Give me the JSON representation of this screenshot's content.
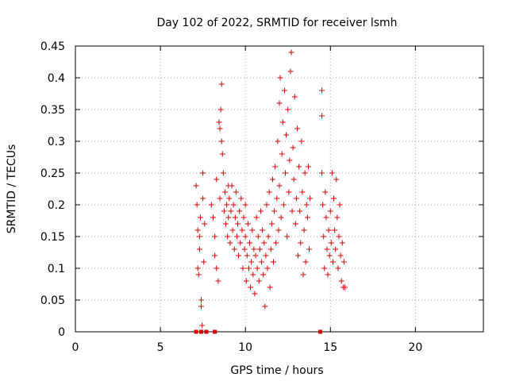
{
  "chart_data": {
    "type": "scatter",
    "title": "Day 102 of 2022, SRMTID for receiver lsmh",
    "xlabel": "GPS time / hours",
    "ylabel": "SRMTID / TECUs",
    "xlim": [
      0,
      24
    ],
    "ylim": [
      0,
      0.45
    ],
    "xticks": [
      0,
      5,
      10,
      15,
      20
    ],
    "yticks": [
      0,
      0.05,
      0.1,
      0.15,
      0.2,
      0.25,
      0.3,
      0.35,
      0.4,
      0.45
    ],
    "xtick_labels": [
      "0",
      "5",
      "10",
      "15",
      "20"
    ],
    "ytick_labels": [
      "0",
      "0.05",
      "0.1",
      "0.15",
      "0.2",
      "0.25",
      "0.3",
      "0.35",
      "0.4",
      "0.45"
    ],
    "grid": true,
    "marker": "plus",
    "color": "#dd0000",
    "series": [
      {
        "name": "SRMTID",
        "points": [
          [
            7.1,
            0.23
          ],
          [
            7.15,
            0.2
          ],
          [
            7.2,
            0.16
          ],
          [
            7.2,
            0.1
          ],
          [
            7.25,
            0.09
          ],
          [
            7.3,
            0.15
          ],
          [
            7.3,
            0.13
          ],
          [
            7.35,
            0.18
          ],
          [
            7.4,
            0.05
          ],
          [
            7.4,
            0.04
          ],
          [
            7.45,
            0.01
          ],
          [
            7.5,
            0.21
          ],
          [
            7.5,
            0.25
          ],
          [
            7.55,
            0.11
          ],
          [
            7.6,
            0.17
          ],
          [
            7.1,
            0.0
          ],
          [
            7.4,
            0.0
          ],
          [
            7.7,
            0.0
          ],
          [
            8.2,
            0.0
          ],
          [
            8.0,
            0.2
          ],
          [
            8.1,
            0.18
          ],
          [
            8.2,
            0.15
          ],
          [
            8.2,
            0.12
          ],
          [
            8.3,
            0.24
          ],
          [
            8.3,
            0.1
          ],
          [
            8.4,
            0.08
          ],
          [
            8.45,
            0.33
          ],
          [
            8.5,
            0.32
          ],
          [
            8.5,
            0.21
          ],
          [
            8.55,
            0.35
          ],
          [
            8.6,
            0.39
          ],
          [
            8.6,
            0.3
          ],
          [
            8.65,
            0.28
          ],
          [
            8.7,
            0.25
          ],
          [
            8.75,
            0.19
          ],
          [
            8.8,
            0.22
          ],
          [
            8.85,
            0.17
          ],
          [
            8.9,
            0.2
          ],
          [
            8.95,
            0.15
          ],
          [
            9.0,
            0.23
          ],
          [
            9.0,
            0.18
          ],
          [
            9.05,
            0.21
          ],
          [
            9.1,
            0.14
          ],
          [
            9.15,
            0.19
          ],
          [
            9.2,
            0.23
          ],
          [
            9.25,
            0.16
          ],
          [
            9.3,
            0.2
          ],
          [
            9.35,
            0.13
          ],
          [
            9.4,
            0.18
          ],
          [
            9.45,
            0.22
          ],
          [
            9.5,
            0.15
          ],
          [
            9.55,
            0.17
          ],
          [
            9.6,
            0.12
          ],
          [
            9.65,
            0.19
          ],
          [
            9.7,
            0.14
          ],
          [
            9.75,
            0.21
          ],
          [
            9.8,
            0.16
          ],
          [
            9.85,
            0.1
          ],
          [
            9.9,
            0.18
          ],
          [
            9.95,
            0.13
          ],
          [
            10.0,
            0.2
          ],
          [
            10.0,
            0.15
          ],
          [
            10.05,
            0.08
          ],
          [
            10.1,
            0.12
          ],
          [
            10.15,
            0.17
          ],
          [
            10.2,
            0.1
          ],
          [
            10.25,
            0.14
          ],
          [
            10.3,
            0.07
          ],
          [
            10.35,
            0.11
          ],
          [
            10.4,
            0.16
          ],
          [
            10.45,
            0.09
          ],
          [
            10.5,
            0.13
          ],
          [
            10.55,
            0.06
          ],
          [
            10.6,
            0.12
          ],
          [
            10.65,
            0.18
          ],
          [
            10.7,
            0.1
          ],
          [
            10.75,
            0.15
          ],
          [
            10.8,
            0.08
          ],
          [
            10.85,
            0.13
          ],
          [
            10.9,
            0.19
          ],
          [
            10.95,
            0.11
          ],
          [
            11.0,
            0.16
          ],
          [
            11.05,
            0.09
          ],
          [
            11.1,
            0.14
          ],
          [
            11.15,
            0.04
          ],
          [
            11.2,
            0.12
          ],
          [
            11.25,
            0.2
          ],
          [
            11.3,
            0.1
          ],
          [
            11.35,
            0.15
          ],
          [
            11.4,
            0.22
          ],
          [
            11.45,
            0.07
          ],
          [
            11.5,
            0.13
          ],
          [
            11.55,
            0.17
          ],
          [
            11.6,
            0.24
          ],
          [
            11.65,
            0.11
          ],
          [
            11.7,
            0.19
          ],
          [
            11.75,
            0.26
          ],
          [
            11.8,
            0.14
          ],
          [
            11.85,
            0.21
          ],
          [
            11.9,
            0.3
          ],
          [
            11.95,
            0.16
          ],
          [
            12.0,
            0.36
          ],
          [
            12.0,
            0.23
          ],
          [
            12.05,
            0.4
          ],
          [
            12.1,
            0.18
          ],
          [
            12.15,
            0.28
          ],
          [
            12.2,
            0.33
          ],
          [
            12.25,
            0.2
          ],
          [
            12.3,
            0.38
          ],
          [
            12.35,
            0.25
          ],
          [
            12.4,
            0.31
          ],
          [
            12.45,
            0.15
          ],
          [
            12.5,
            0.35
          ],
          [
            12.55,
            0.22
          ],
          [
            12.6,
            0.27
          ],
          [
            12.65,
            0.41
          ],
          [
            12.7,
            0.44
          ],
          [
            12.75,
            0.19
          ],
          [
            12.8,
            0.29
          ],
          [
            12.85,
            0.24
          ],
          [
            12.9,
            0.37
          ],
          [
            12.95,
            0.17
          ],
          [
            13.0,
            0.21
          ],
          [
            13.05,
            0.32
          ],
          [
            13.1,
            0.12
          ],
          [
            13.15,
            0.26
          ],
          [
            13.2,
            0.19
          ],
          [
            13.25,
            0.14
          ],
          [
            13.3,
            0.3
          ],
          [
            13.35,
            0.22
          ],
          [
            13.4,
            0.09
          ],
          [
            13.45,
            0.16
          ],
          [
            13.5,
            0.25
          ],
          [
            13.55,
            0.11
          ],
          [
            13.6,
            0.2
          ],
          [
            13.65,
            0.18
          ],
          [
            13.7,
            0.26
          ],
          [
            13.75,
            0.13
          ],
          [
            13.8,
            0.21
          ],
          [
            14.5,
            0.38
          ],
          [
            14.5,
            0.34
          ],
          [
            14.4,
            0.0
          ],
          [
            14.5,
            0.25
          ],
          [
            14.55,
            0.2
          ],
          [
            14.6,
            0.15
          ],
          [
            14.65,
            0.1
          ],
          [
            14.7,
            0.22
          ],
          [
            14.75,
            0.18
          ],
          [
            14.8,
            0.13
          ],
          [
            14.85,
            0.09
          ],
          [
            14.9,
            0.16
          ],
          [
            14.95,
            0.12
          ],
          [
            15.0,
            0.19
          ],
          [
            15.05,
            0.14
          ],
          [
            15.1,
            0.25
          ],
          [
            15.15,
            0.11
          ],
          [
            15.2,
            0.21
          ],
          [
            15.25,
            0.16
          ],
          [
            15.3,
            0.13
          ],
          [
            15.35,
            0.24
          ],
          [
            15.4,
            0.18
          ],
          [
            15.45,
            0.1
          ],
          [
            15.5,
            0.15
          ],
          [
            15.55,
            0.2
          ],
          [
            15.6,
            0.12
          ],
          [
            15.65,
            0.08
          ],
          [
            15.7,
            0.14
          ],
          [
            15.75,
            0.07
          ],
          [
            15.8,
            0.11
          ],
          [
            15.85,
            0.07
          ]
        ]
      }
    ]
  }
}
